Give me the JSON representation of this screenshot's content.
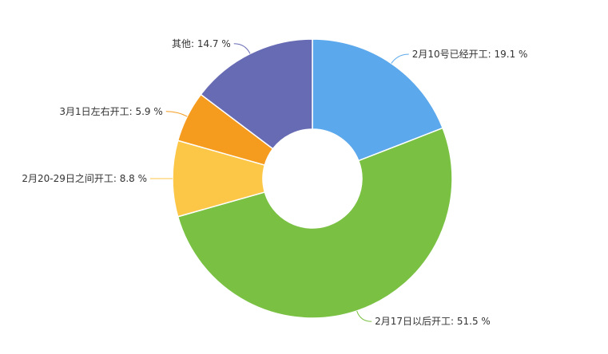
{
  "chart_data": {
    "type": "pie",
    "variant": "donut",
    "start": "top",
    "direction": "clockwise",
    "slices": [
      {
        "label": "2月10号已经开工: 19.1 %",
        "value": 19.1,
        "color": "#5ba8ec"
      },
      {
        "label": "2月17日以后开工: 51.5 %",
        "value": 51.5,
        "color": "#7ac143"
      },
      {
        "label": "2月20-29日之间开工: 8.8 %",
        "value": 8.8,
        "color": "#fcc647"
      },
      {
        "label": "3月1日左右开工: 5.9 %",
        "value": 5.9,
        "color": "#f59c1f"
      },
      {
        "label": "其他: 14.7 %",
        "value": 14.7,
        "color": "#676bb4"
      }
    ]
  }
}
